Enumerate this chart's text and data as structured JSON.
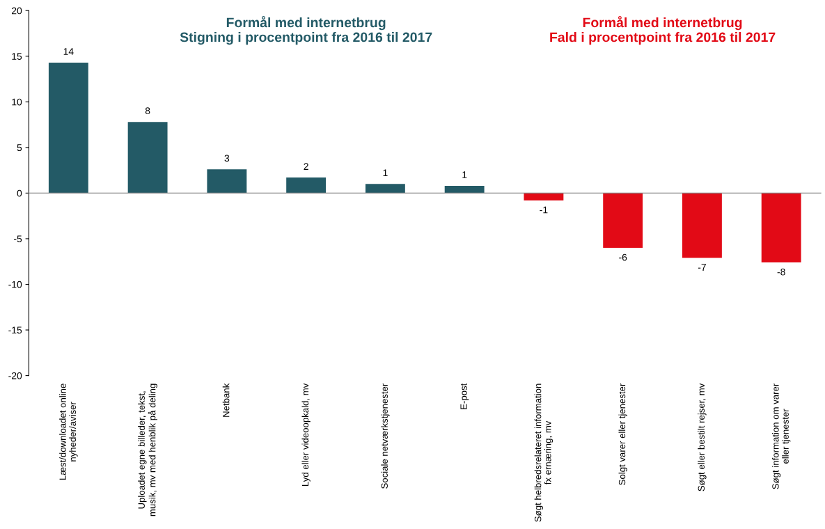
{
  "chart_data": {
    "type": "bar",
    "categories": [
      "Læst/downloadet online\nnyheder/aviser",
      "Uploadet egne billeder, tekst,\nmusik, mv med henblik på deling",
      "Netbank",
      "Lyd eller videoopkald, mv",
      "Sociale netværkstjenester",
      "E-post",
      "Søgt helbredsrelateret information\nfx ernæring, mv",
      "Solgt varer eller tjenester",
      "Søgt eller bestilt rejser, mv",
      "Søgt information om varer\neller tjenester"
    ],
    "values": [
      14.3,
      7.8,
      2.6,
      1.7,
      1.0,
      0.8,
      -0.8,
      -6.0,
      -7.1,
      -7.6
    ],
    "value_labels": [
      "14",
      "8",
      "3",
      "2",
      "1",
      "1",
      "-1",
      "-6",
      "-7",
      "-8"
    ],
    "colors": [
      "#235a66",
      "#235a66",
      "#235a66",
      "#235a66",
      "#235a66",
      "#235a66",
      "#e20a16",
      "#e20a16",
      "#e20a16",
      "#e20a16"
    ],
    "ylim": [
      -20,
      20
    ],
    "yticks": [
      -20,
      -15,
      -10,
      -5,
      0,
      5,
      10,
      15,
      20
    ],
    "annotations": [
      "Formål med internetbrug\nStigning i procentpoint fra 2016 til 2017",
      "Formål med internetbrug\nFald i procentpoint fra 2016 til 2017"
    ],
    "legend": false
  }
}
